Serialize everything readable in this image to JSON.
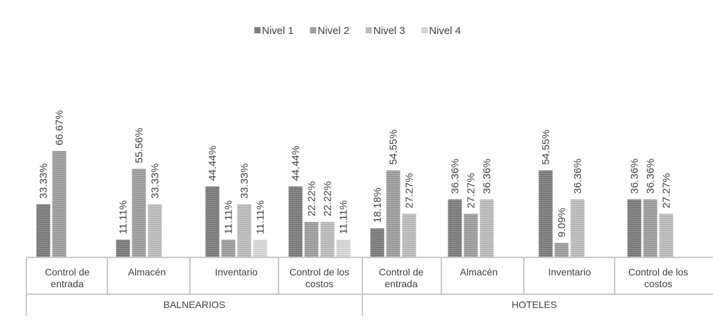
{
  "chart_data": {
    "type": "bar",
    "title": "",
    "legend": {
      "position": "top",
      "entries": [
        "Nivel 1",
        "Nivel 2",
        "Nivel 3",
        "Nivel 4"
      ]
    },
    "colors": [
      "#8a8a8a",
      "#a9a9a9",
      "#c4c4c4",
      "#dcdcdc"
    ],
    "ylim": [
      0,
      70
    ],
    "grid": false,
    "groups": [
      {
        "name": "BALNEARIOS",
        "categories": [
          {
            "label_lines": [
              "Control de",
              "entrada"
            ],
            "values": [
              33.33,
              66.67,
              null,
              null
            ]
          },
          {
            "label_lines": [
              "Almacén"
            ],
            "values": [
              11.11,
              55.56,
              33.33,
              null
            ]
          },
          {
            "label_lines": [
              "Inventario"
            ],
            "values": [
              44.44,
              11.11,
              33.33,
              11.11
            ]
          },
          {
            "label_lines": [
              "Control de los",
              "costos"
            ],
            "values": [
              44.44,
              22.22,
              22.22,
              11.11
            ]
          }
        ]
      },
      {
        "name": "HOTELES",
        "categories": [
          {
            "label_lines": [
              "Control de",
              "entrada"
            ],
            "values": [
              18.18,
              54.55,
              27.27,
              null
            ]
          },
          {
            "label_lines": [
              "Almacén"
            ],
            "values": [
              36.36,
              27.27,
              36.36,
              null
            ]
          },
          {
            "label_lines": [
              "Inventario"
            ],
            "values": [
              54.55,
              9.09,
              36.36,
              null
            ]
          },
          {
            "label_lines": [
              "Control de los",
              "costos"
            ],
            "values": [
              36.36,
              36.36,
              27.27,
              null
            ]
          }
        ]
      }
    ],
    "series": [
      {
        "name": "Nivel 1"
      },
      {
        "name": "Nivel 2"
      },
      {
        "name": "Nivel 3"
      },
      {
        "name": "Nivel 4"
      }
    ]
  }
}
